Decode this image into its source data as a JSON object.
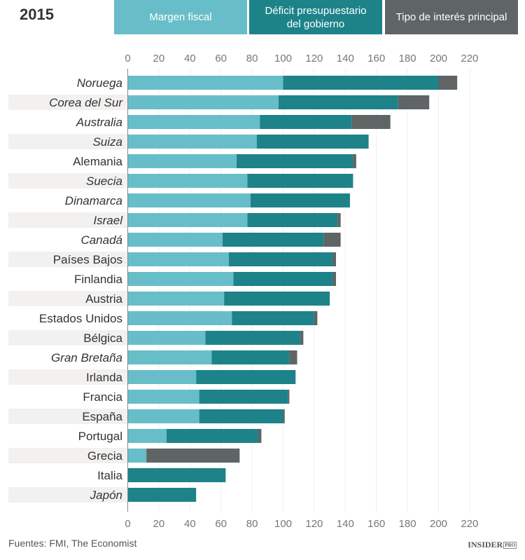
{
  "chart_data": {
    "type": "bar",
    "orientation": "horizontal",
    "stacked": true,
    "title": "2015",
    "xlim": [
      0,
      220
    ],
    "xticks": [
      0,
      20,
      40,
      60,
      80,
      100,
      120,
      140,
      160,
      180,
      200,
      220
    ],
    "grid": true,
    "legend_placement": "top",
    "categories": [
      "Noruega",
      "Corea del Sur",
      "Australia",
      "Suiza",
      "Alemania",
      "Suecia",
      "Dinamarca",
      "Israel",
      "Canadá",
      "Países Bajos",
      "Finlandia",
      "Austria",
      "Estados Unidos",
      "Bélgica",
      "Gran Bretaña",
      "Irlanda",
      "Francia",
      "España",
      "Portugal",
      "Grecia",
      "Italia",
      "Japón"
    ],
    "italic_categories": [
      "Noruega",
      "Corea del Sur",
      "Australia",
      "Suiza",
      "Suecia",
      "Dinamarca",
      "Israel",
      "Canadá",
      "Gran Bretaña",
      "Japón"
    ],
    "series": [
      {
        "name": "Margen fiscal",
        "color": "#68bec8",
        "values": [
          100,
          97,
          85,
          83,
          70,
          77,
          79,
          77,
          61,
          65,
          68,
          62,
          67,
          50,
          54,
          44,
          46,
          46,
          25,
          12,
          0,
          0
        ]
      },
      {
        "name": "Déficit presupuestario del gobierno",
        "color": "#1d8389",
        "values": [
          100,
          77,
          59,
          72,
          75,
          68,
          64,
          58,
          65,
          67,
          64,
          68,
          53,
          61,
          50,
          64,
          57,
          54,
          59,
          0,
          63,
          44
        ]
      },
      {
        "name": "Tipo de interés principal",
        "color": "#5f6465",
        "values": [
          12,
          20,
          25,
          0,
          2,
          0,
          0,
          2,
          11,
          2,
          2,
          0,
          2,
          2,
          5,
          0,
          1,
          1,
          2,
          60,
          0,
          0
        ]
      }
    ]
  },
  "legend": {
    "margen": "Margen fiscal",
    "deficit_1": "Déficit presupuestario",
    "deficit_2": "del gobierno",
    "tipo": "Tipo de interés principal"
  },
  "footer": {
    "source": "Fuentes: FMI, The Economist",
    "logo": "INSIDER",
    "logo_badge": "PRO"
  }
}
